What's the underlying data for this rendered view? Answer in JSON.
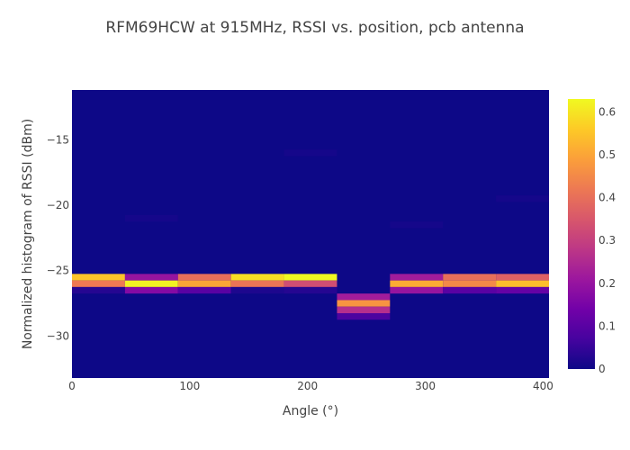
{
  "chart_data": {
    "type": "heatmap",
    "title": "RFM69HCW at 915MHz, RSSI vs. position, pcb antenna",
    "xlabel": "Angle (°)",
    "ylabel": "Normalized histogram of RSSI (dBm)",
    "xlim": [
      0,
      405
    ],
    "ylim": [
      -33.2,
      -11.2
    ],
    "x_ticks": [
      0,
      100,
      200,
      300,
      400
    ],
    "y_ticks": [
      -30,
      -25,
      -20,
      -15
    ],
    "x_tick_labels": [
      "0",
      "100",
      "200",
      "300",
      "400"
    ],
    "y_tick_labels": [
      "−30",
      "−25",
      "−20",
      "−15"
    ],
    "x": [
      22.5,
      67.5,
      112.5,
      157.5,
      202.5,
      247.5,
      292.5,
      337.5,
      382.5
    ],
    "x_bin_width": 45,
    "y_bin_height": 0.5,
    "colorbar": {
      "range": [
        0,
        0.63
      ],
      "ticks": [
        0,
        0.1,
        0.2,
        0.3,
        0.4,
        0.5,
        0.6
      ],
      "tick_labels": [
        "0",
        "0.1",
        "0.2",
        "0.3",
        "0.4",
        "0.5",
        "0.6"
      ],
      "colorscale": [
        "#0d0887",
        "#46039f",
        "#7201a8",
        "#9c179e",
        "#bd3786",
        "#d8576b",
        "#ed7953",
        "#fb9f3a",
        "#fdca26",
        "#f0f921"
      ]
    },
    "cells": [
      {
        "x": 22.5,
        "y": -25.5,
        "value": 0.55
      },
      {
        "x": 22.5,
        "y": -26.0,
        "value": 0.42
      },
      {
        "x": 22.5,
        "y": -26.5,
        "value": 0.03
      },
      {
        "x": 67.5,
        "y": -25.5,
        "value": 0.2
      },
      {
        "x": 67.5,
        "y": -26.0,
        "value": 0.62
      },
      {
        "x": 67.5,
        "y": -26.5,
        "value": 0.17
      },
      {
        "x": 67.5,
        "y": -21.0,
        "value": 0.01
      },
      {
        "x": 112.5,
        "y": -25.5,
        "value": 0.4
      },
      {
        "x": 112.5,
        "y": -26.0,
        "value": 0.5
      },
      {
        "x": 112.5,
        "y": -26.5,
        "value": 0.1
      },
      {
        "x": 157.5,
        "y": -25.5,
        "value": 0.59
      },
      {
        "x": 157.5,
        "y": -26.0,
        "value": 0.41
      },
      {
        "x": 157.5,
        "y": -26.5,
        "value": 0.02
      },
      {
        "x": 202.5,
        "y": -25.5,
        "value": 0.63
      },
      {
        "x": 202.5,
        "y": -26.0,
        "value": 0.33
      },
      {
        "x": 202.5,
        "y": -26.5,
        "value": 0.03
      },
      {
        "x": 202.5,
        "y": -16.0,
        "value": 0.01
      },
      {
        "x": 247.5,
        "y": -27.0,
        "value": 0.22
      },
      {
        "x": 247.5,
        "y": -27.5,
        "value": 0.47
      },
      {
        "x": 247.5,
        "y": -28.0,
        "value": 0.26
      },
      {
        "x": 247.5,
        "y": -28.5,
        "value": 0.08
      },
      {
        "x": 292.5,
        "y": -25.5,
        "value": 0.22
      },
      {
        "x": 292.5,
        "y": -26.0,
        "value": 0.51
      },
      {
        "x": 292.5,
        "y": -26.5,
        "value": 0.2
      },
      {
        "x": 292.5,
        "y": -21.5,
        "value": 0.01
      },
      {
        "x": 337.5,
        "y": -25.5,
        "value": 0.4
      },
      {
        "x": 337.5,
        "y": -26.0,
        "value": 0.45
      },
      {
        "x": 337.5,
        "y": -26.5,
        "value": 0.1
      },
      {
        "x": 382.5,
        "y": -25.5,
        "value": 0.37
      },
      {
        "x": 382.5,
        "y": -26.0,
        "value": 0.54
      },
      {
        "x": 382.5,
        "y": -26.5,
        "value": 0.12
      },
      {
        "x": 382.5,
        "y": -19.5,
        "value": 0.01
      }
    ]
  }
}
